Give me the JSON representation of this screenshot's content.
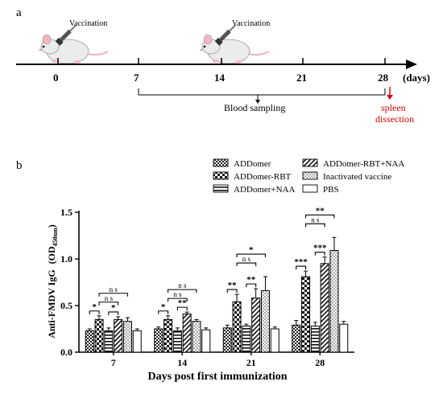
{
  "panel_a": {
    "label": "a",
    "vaccination_label_1": "Vaccination",
    "vaccination_label_2": "Vaccination",
    "timeline_days": [
      "0",
      "7",
      "14",
      "21",
      "28"
    ],
    "timeline_unit": "(days)",
    "blood_sampling": "Blood sampling",
    "spleen_line_1": "spleen",
    "spleen_line_2": "dissection",
    "spleen_color": "#e00000"
  },
  "panel_b": {
    "label": "b"
  },
  "chart_data": {
    "type": "bar",
    "title": "",
    "xlabel": "Days post first immunization",
    "ylabel_main": "Anti-FMDV IgG",
    "ylabel_unit_open": "(OD",
    "ylabel_unit_sub": "450nm",
    "ylabel_unit_close": ")",
    "ylim": [
      0,
      1.5
    ],
    "yticks": [
      "0.0",
      "0.5",
      "1.0",
      "1.5"
    ],
    "categories": [
      "7",
      "14",
      "21",
      "28"
    ],
    "series": [
      {
        "name": "ADDomer",
        "pattern": "dense-check",
        "values": [
          0.23,
          0.25,
          0.26,
          0.29
        ],
        "errors": [
          0.02,
          0.02,
          0.03,
          0.05
        ]
      },
      {
        "name": "ADDomer-RBT",
        "pattern": "check",
        "values": [
          0.35,
          0.35,
          0.54,
          0.81
        ],
        "errors": [
          0.04,
          0.04,
          0.08,
          0.06
        ]
      },
      {
        "name": "ADDomer+NAA",
        "pattern": "hstripe",
        "values": [
          0.23,
          0.23,
          0.28,
          0.28
        ],
        "errors": [
          0.03,
          0.03,
          0.02,
          0.04
        ]
      },
      {
        "name": "ADDomer-RBT+NAA",
        "pattern": "diag",
        "values": [
          0.35,
          0.41,
          0.58,
          0.95
        ],
        "errors": [
          0.03,
          0.02,
          0.1,
          0.07
        ]
      },
      {
        "name": "Inactivated vaccine",
        "pattern": "dots",
        "values": [
          0.33,
          0.33,
          0.66,
          1.09
        ],
        "errors": [
          0.04,
          0.02,
          0.15,
          0.14
        ]
      },
      {
        "name": "PBS",
        "pattern": "none",
        "values": [
          0.23,
          0.24,
          0.25,
          0.3
        ],
        "errors": [
          0.02,
          0.02,
          0.02,
          0.03
        ]
      }
    ],
    "legend_position": "top-right",
    "significance": [
      {
        "group": 0,
        "from": 0,
        "to": 1,
        "label": "*",
        "level": 0
      },
      {
        "group": 0,
        "from": 2,
        "to": 3,
        "label": "*",
        "level": 0
      },
      {
        "group": 0,
        "from": 1,
        "to": 3,
        "label": "n s",
        "level": 1
      },
      {
        "group": 0,
        "from": 1,
        "to": 4,
        "label": "n s",
        "level": 2
      },
      {
        "group": 1,
        "from": 0,
        "to": 1,
        "label": "*",
        "level": 0
      },
      {
        "group": 1,
        "from": 2,
        "to": 3,
        "label": "**",
        "level": 0
      },
      {
        "group": 1,
        "from": 1,
        "to": 3,
        "label": "n s",
        "level": 1
      },
      {
        "group": 1,
        "from": 1,
        "to": 4,
        "label": "n s",
        "level": 2
      },
      {
        "group": 2,
        "from": 0,
        "to": 1,
        "label": "**",
        "level": 0
      },
      {
        "group": 2,
        "from": 2,
        "to": 3,
        "label": "**",
        "level": 0
      },
      {
        "group": 2,
        "from": 1,
        "to": 3,
        "label": "n s",
        "level": 1
      },
      {
        "group": 2,
        "from": 1,
        "to": 4,
        "label": "*",
        "level": 2
      },
      {
        "group": 3,
        "from": 0,
        "to": 1,
        "label": "***",
        "level": 0
      },
      {
        "group": 3,
        "from": 2,
        "to": 3,
        "label": "***",
        "level": 0
      },
      {
        "group": 3,
        "from": 1,
        "to": 3,
        "label": "n s",
        "level": 1
      },
      {
        "group": 3,
        "from": 1,
        "to": 4,
        "label": "**",
        "level": 2
      }
    ]
  }
}
